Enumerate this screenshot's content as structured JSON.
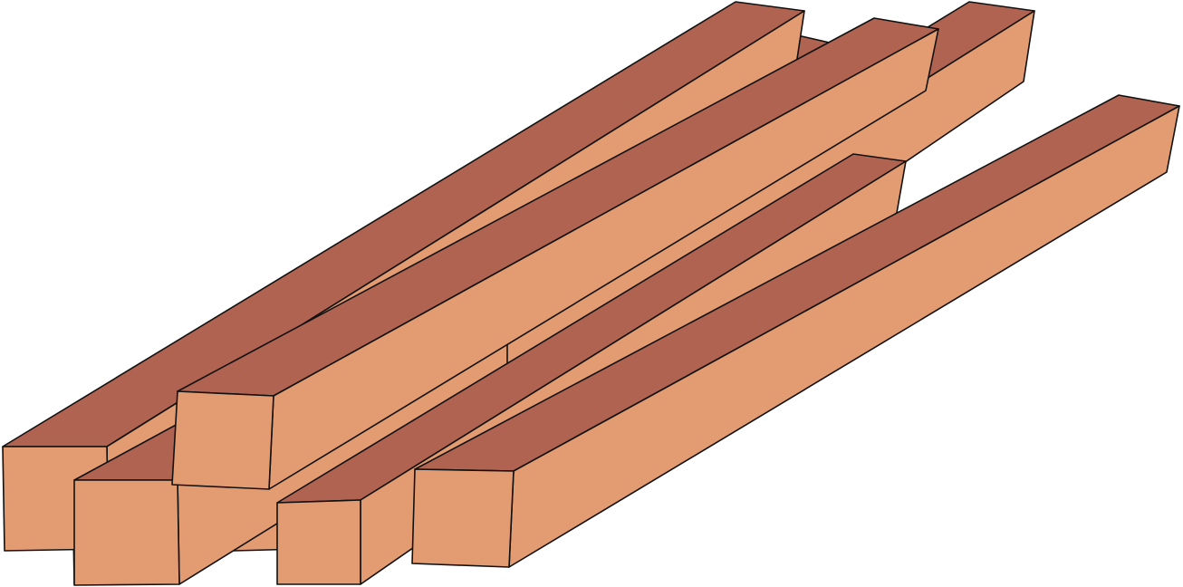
{
  "illustration": {
    "subject": "lumber-beams",
    "beam_count": 6,
    "colors": {
      "background": "#ffffff",
      "top_face": "#b06350",
      "side_face": "#e39c72",
      "end_face": "#e39c72",
      "outline": "#111111"
    }
  }
}
